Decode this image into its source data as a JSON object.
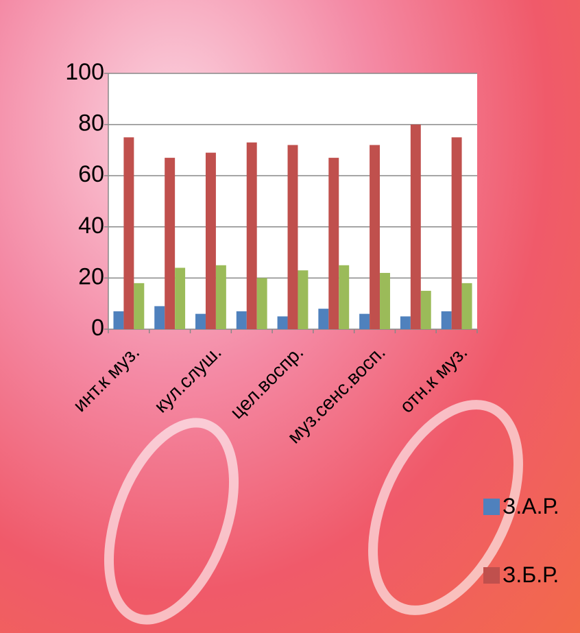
{
  "chart_data": {
    "type": "bar",
    "categories": [
      "инт.к муз.",
      null,
      "кул.слуш.",
      null,
      "цел.воспр.",
      null,
      "муз.сенс.восп.",
      null,
      "отн.к муз."
    ],
    "series": [
      {
        "name": "З.А.Р.",
        "color": "#4f81bd",
        "values": [
          7,
          9,
          6,
          7,
          5,
          8,
          6,
          5,
          7
        ]
      },
      {
        "name": "З.Б.Р.",
        "color": "#c0504d",
        "values": [
          75,
          67,
          69,
          73,
          72,
          67,
          72,
          80,
          75
        ]
      },
      {
        "color": "#9bbb59",
        "values": [
          18,
          24,
          25,
          20,
          23,
          25,
          22,
          15,
          18
        ]
      }
    ],
    "ylim": [
      0,
      100
    ],
    "yticks": [
      0,
      20,
      40,
      60,
      80,
      100
    ],
    "grid": true
  }
}
